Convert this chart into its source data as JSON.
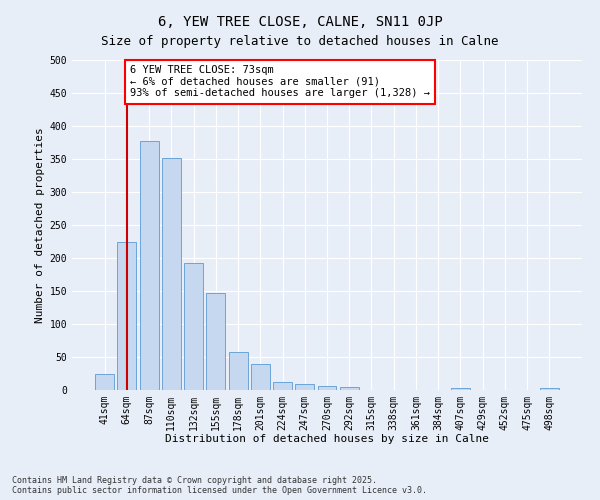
{
  "title1": "6, YEW TREE CLOSE, CALNE, SN11 0JP",
  "title2": "Size of property relative to detached houses in Calne",
  "xlabel": "Distribution of detached houses by size in Calne",
  "ylabel": "Number of detached properties",
  "categories": [
    "41sqm",
    "64sqm",
    "87sqm",
    "110sqm",
    "132sqm",
    "155sqm",
    "178sqm",
    "201sqm",
    "224sqm",
    "247sqm",
    "270sqm",
    "292sqm",
    "315sqm",
    "338sqm",
    "361sqm",
    "384sqm",
    "407sqm",
    "429sqm",
    "452sqm",
    "475sqm",
    "498sqm"
  ],
  "values": [
    25,
    225,
    378,
    352,
    193,
    147,
    57,
    40,
    12,
    9,
    6,
    4,
    0,
    0,
    0,
    0,
    3,
    0,
    0,
    0,
    3
  ],
  "bar_color": "#c5d8f0",
  "bar_edge_color": "#5b9bd5",
  "vline_x_index": 1,
  "vline_color": "#cc0000",
  "annotation_text": "6 YEW TREE CLOSE: 73sqm\n← 6% of detached houses are smaller (91)\n93% of semi-detached houses are larger (1,328) →",
  "annotation_fontsize": 7.5,
  "ylim": [
    0,
    500
  ],
  "yticks": [
    0,
    50,
    100,
    150,
    200,
    250,
    300,
    350,
    400,
    450,
    500
  ],
  "footer": "Contains HM Land Registry data © Crown copyright and database right 2025.\nContains public sector information licensed under the Open Government Licence v3.0.",
  "background_color": "#e8eef8",
  "plot_bg_color": "#e8eef8",
  "grid_color": "#ffffff",
  "title_fontsize": 10,
  "subtitle_fontsize": 9,
  "axis_label_fontsize": 8,
  "tick_fontsize": 7
}
